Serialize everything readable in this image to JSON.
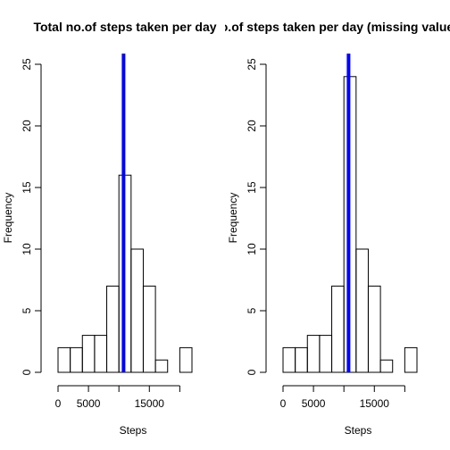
{
  "chart_data": [
    {
      "type": "bar",
      "title": "Total no.of steps taken per day",
      "xlabel": "Steps",
      "ylabel": "Frequency",
      "xlim": [
        0,
        22500
      ],
      "ylim": [
        0,
        25
      ],
      "x_ticks": [
        0,
        5000,
        15000
      ],
      "y_ticks": [
        0,
        5,
        10,
        15,
        20,
        25
      ],
      "bin_edges": [
        0,
        2000,
        4000,
        6000,
        8000,
        10000,
        12000,
        14000,
        16000,
        18000,
        20000,
        22000
      ],
      "counts": [
        2,
        2,
        3,
        3,
        7,
        16,
        10,
        7,
        1,
        0,
        2
      ],
      "mean_line": 10766,
      "mean_line_color": "#0000ff"
    },
    {
      "type": "bar",
      "title": "Total no.of steps taken per day (missing values replaced)",
      "xlabel": "Steps",
      "ylabel": "Frequency",
      "xlim": [
        0,
        22500
      ],
      "ylim": [
        0,
        25
      ],
      "x_ticks": [
        0,
        5000,
        15000
      ],
      "y_ticks": [
        0,
        5,
        10,
        15,
        20,
        25
      ],
      "bin_edges": [
        0,
        2000,
        4000,
        6000,
        8000,
        10000,
        12000,
        14000,
        16000,
        18000,
        20000,
        22000
      ],
      "counts": [
        2,
        2,
        3,
        3,
        7,
        24,
        10,
        7,
        1,
        0,
        2
      ],
      "mean_line": 10766,
      "mean_line_color": "#0000ff"
    }
  ]
}
